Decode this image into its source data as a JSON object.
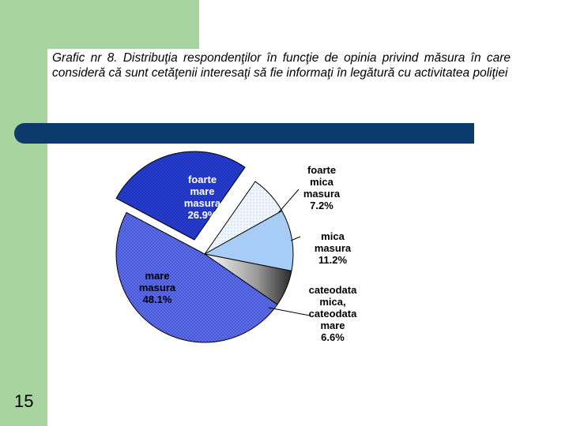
{
  "slide": {
    "title": "Grafic nr 8. Distribuţia respondenţilor în funcţie de opinia privind măsura în care consideră că sunt cetăţenii interesaţi să fie informaţi în legătură cu activitatea poliţiei",
    "page_number": "15"
  },
  "colors": {
    "side_bar": "#a8d4a0",
    "band": "#0b3a6b"
  },
  "chart_data": {
    "type": "pie",
    "slices": [
      {
        "label_lines": [
          "foarte",
          "mare",
          "masura"
        ],
        "value": 26.9,
        "value_text": "26.9%",
        "color": "#1a2fb8",
        "label_color": "#ffffff"
      },
      {
        "label_lines": [
          "foarte",
          "mica",
          "masura"
        ],
        "value": 7.2,
        "value_text": "7.2%",
        "color": "#e4eef6",
        "label_color": "#000000"
      },
      {
        "label_lines": [
          "mica",
          "masura"
        ],
        "value": 11.2,
        "value_text": "11.2%",
        "color": "#a7cdf7",
        "label_color": "#000000"
      },
      {
        "label_lines": [
          "cateodata",
          "mica,",
          "cateodata",
          "mare"
        ],
        "value": 6.6,
        "value_text": "6.6%",
        "color": "#8a8a8a",
        "label_color": "#000000"
      },
      {
        "label_lines": [
          "mare",
          "masura"
        ],
        "value": 48.1,
        "value_text": "48.1%",
        "color": "#3c4ed6",
        "label_color": "#000000"
      }
    ]
  }
}
